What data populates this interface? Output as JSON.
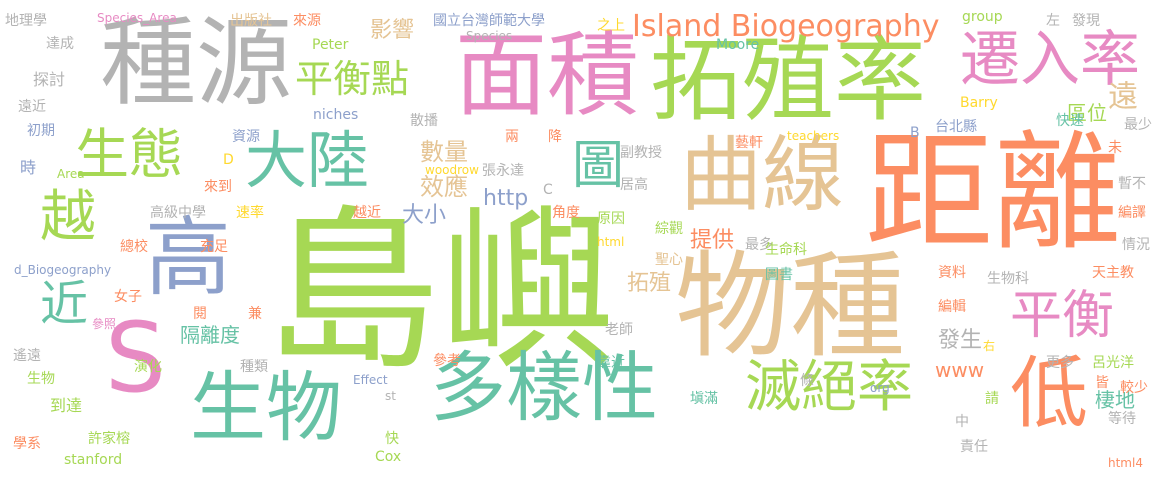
{
  "colors": {
    "green": "#a6d854",
    "orange": "#fc8d62",
    "teal": "#66c2a5",
    "tan": "#e5c494",
    "pink": "#e78ac3",
    "blue": "#8da0cb",
    "gray": "#b3b3b3",
    "yellow": "#ffd92f"
  },
  "words": [
    {
      "text": "島嶼",
      "color": "green"
    },
    {
      "text": "距離",
      "color": "orange"
    },
    {
      "text": "物種",
      "color": "tan"
    },
    {
      "text": "面積",
      "color": "pink"
    },
    {
      "text": "拓殖率",
      "color": "green"
    },
    {
      "text": "種源",
      "color": "gray"
    },
    {
      "text": "曲線",
      "color": "tan"
    },
    {
      "text": "多樣性",
      "color": "teal"
    },
    {
      "text": "生物",
      "color": "teal"
    },
    {
      "text": "遷入率",
      "color": "pink"
    },
    {
      "text": "大陸",
      "color": "teal"
    },
    {
      "text": "高",
      "color": "blue"
    },
    {
      "text": "S",
      "color": "pink"
    },
    {
      "text": "低",
      "color": "orange"
    },
    {
      "text": "滅絕率",
      "color": "green"
    },
    {
      "text": "平衡",
      "color": "pink"
    },
    {
      "text": "生態",
      "color": "green"
    },
    {
      "text": "越",
      "color": "green"
    },
    {
      "text": "近",
      "color": "teal"
    },
    {
      "text": "圖",
      "color": "teal"
    },
    {
      "text": "平衡點",
      "color": "green"
    },
    {
      "text": "Island Biogeography",
      "color": "orange"
    },
    {
      "text": "影響",
      "color": "tan"
    },
    {
      "text": "數量",
      "color": "tan"
    },
    {
      "text": "效應",
      "color": "tan"
    },
    {
      "text": "大小",
      "color": "blue"
    },
    {
      "text": "http",
      "color": "blue"
    },
    {
      "text": "提供",
      "color": "orange"
    },
    {
      "text": "拓殖",
      "color": "tan"
    },
    {
      "text": "隔離度",
      "color": "teal"
    },
    {
      "text": "發生",
      "color": "gray"
    },
    {
      "text": "www",
      "color": "orange"
    },
    {
      "text": "棲地",
      "color": "teal"
    },
    {
      "text": "區位",
      "color": "green"
    },
    {
      "text": "遠",
      "color": "tan"
    },
    {
      "text": "國立台灣師範大學",
      "color": "blue"
    },
    {
      "text": "地理學",
      "color": "gray"
    },
    {
      "text": "Species_Area",
      "color": "pink"
    },
    {
      "text": "出版社",
      "color": "tan"
    },
    {
      "text": "來源",
      "color": "orange"
    },
    {
      "text": "Peter",
      "color": "green"
    },
    {
      "text": "Species",
      "color": "gray"
    },
    {
      "text": "之上",
      "color": "yellow"
    },
    {
      "text": "Moore",
      "color": "teal"
    },
    {
      "text": "group",
      "color": "green"
    },
    {
      "text": "左",
      "color": "gray"
    },
    {
      "text": "發現",
      "color": "gray"
    },
    {
      "text": "達成",
      "color": "gray"
    },
    {
      "text": "探討",
      "color": "gray"
    },
    {
      "text": "遠近",
      "color": "gray"
    },
    {
      "text": "初期",
      "color": "blue"
    },
    {
      "text": "資源",
      "color": "blue"
    },
    {
      "text": "niches",
      "color": "blue"
    },
    {
      "text": "散播",
      "color": "gray"
    },
    {
      "text": "兩",
      "color": "orange"
    },
    {
      "text": "降",
      "color": "orange"
    },
    {
      "text": "Barry",
      "color": "yellow"
    },
    {
      "text": "快速",
      "color": "teal"
    },
    {
      "text": "最少",
      "color": "gray"
    },
    {
      "text": "台北縣",
      "color": "blue"
    },
    {
      "text": "teachers",
      "color": "yellow"
    },
    {
      "text": "B",
      "color": "blue"
    },
    {
      "text": "藝軒",
      "color": "orange"
    },
    {
      "text": "副教授",
      "color": "gray"
    },
    {
      "text": "woodrow",
      "color": "yellow"
    },
    {
      "text": "張永達",
      "color": "gray"
    },
    {
      "text": "未",
      "color": "orange"
    },
    {
      "text": "時",
      "color": "blue"
    },
    {
      "text": "D",
      "color": "yellow"
    },
    {
      "text": "Area",
      "color": "green"
    },
    {
      "text": "來到",
      "color": "orange"
    },
    {
      "text": "高級中學",
      "color": "gray"
    },
    {
      "text": "越近",
      "color": "orange"
    },
    {
      "text": "C",
      "color": "gray"
    },
    {
      "text": "居高",
      "color": "gray"
    },
    {
      "text": "暫不",
      "color": "gray"
    },
    {
      "text": "速率",
      "color": "yellow"
    },
    {
      "text": "角度",
      "color": "orange"
    },
    {
      "text": "原因",
      "color": "green"
    },
    {
      "text": "綜觀",
      "color": "green"
    },
    {
      "text": "編譯",
      "color": "orange"
    },
    {
      "text": "總校",
      "color": "orange"
    },
    {
      "text": "充足",
      "color": "orange"
    },
    {
      "text": "html",
      "color": "yellow"
    },
    {
      "text": "最多",
      "color": "gray"
    },
    {
      "text": "生命科",
      "color": "green"
    },
    {
      "text": "情況",
      "color": "gray"
    },
    {
      "text": "d_Biogeography",
      "color": "blue"
    },
    {
      "text": "聖心",
      "color": "tan"
    },
    {
      "text": "圖書",
      "color": "teal"
    },
    {
      "text": "資料",
      "color": "orange"
    },
    {
      "text": "生物科",
      "color": "gray"
    },
    {
      "text": "天主教",
      "color": "orange"
    },
    {
      "text": "女子",
      "color": "orange"
    },
    {
      "text": "閱",
      "color": "orange"
    },
    {
      "text": "兼",
      "color": "orange"
    },
    {
      "text": "參照",
      "color": "pink"
    },
    {
      "text": "編輯",
      "color": "orange"
    },
    {
      "text": "老師",
      "color": "gray"
    },
    {
      "text": "右",
      "color": "yellow"
    },
    {
      "text": "遙遠",
      "color": "gray"
    },
    {
      "text": "演化",
      "color": "green"
    },
    {
      "text": "種類",
      "color": "gray"
    },
    {
      "text": "參考",
      "color": "orange"
    },
    {
      "text": "靠近",
      "color": "teal"
    },
    {
      "text": "更多",
      "color": "gray"
    },
    {
      "text": "呂光洋",
      "color": "green"
    },
    {
      "text": "生物",
      "color": "green"
    },
    {
      "text": "Effect",
      "color": "blue"
    },
    {
      "text": "條",
      "color": "gray"
    },
    {
      "text": "org",
      "color": "blue"
    },
    {
      "text": "皆",
      "color": "orange"
    },
    {
      "text": "較少",
      "color": "orange"
    },
    {
      "text": "到達",
      "color": "green"
    },
    {
      "text": "st",
      "color": "gray"
    },
    {
      "text": "塡滿",
      "color": "teal"
    },
    {
      "text": "請",
      "color": "green"
    },
    {
      "text": "學系",
      "color": "orange"
    },
    {
      "text": "許家榕",
      "color": "green"
    },
    {
      "text": "快",
      "color": "green"
    },
    {
      "text": "中",
      "color": "gray"
    },
    {
      "text": "等待",
      "color": "gray"
    },
    {
      "text": "stanford",
      "color": "green"
    },
    {
      "text": "Cox",
      "color": "green"
    },
    {
      "text": "責任",
      "color": "gray"
    },
    {
      "text": "html4",
      "color": "orange"
    }
  ]
}
